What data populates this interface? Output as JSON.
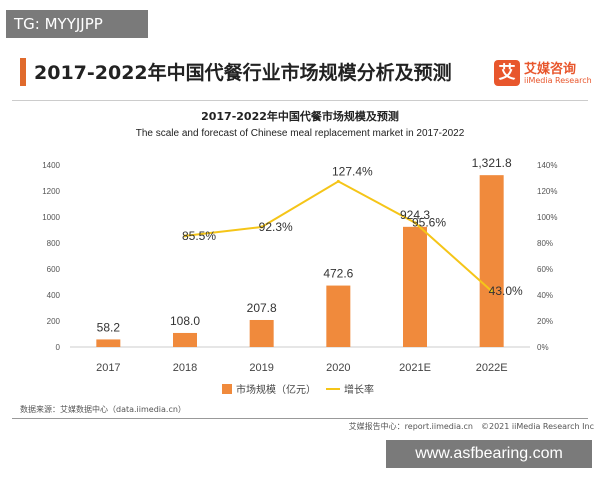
{
  "overlay_tag": "TG: MYYJJPP",
  "page_title": "2017-2022年中国代餐行业市场规模分析及预测",
  "logo": {
    "mark": "艾",
    "name_cn": "艾媒咨询",
    "name_en": "iiMedia Research"
  },
  "source_text": "数据来源：艾媒数据中心（data.iimedia.cn）",
  "footer_text": "艾媒报告中心：report.iimedia.cn　©2021 iiMedia Research Inc",
  "overlay_url": "www.asfbearing.com",
  "colors": {
    "bar": "#f08a3c",
    "line": "#f5c518",
    "accent": "#e06a2c"
  },
  "chart_data": {
    "type": "bar",
    "title": "2017-2022年中国代餐市场规模及预测",
    "subtitle": "The scale and forecast of Chinese meal replacement market in 2017-2022",
    "categories": [
      "2017",
      "2018",
      "2019",
      "2020",
      "2021E",
      "2022E"
    ],
    "series": [
      {
        "name": "市场规模（亿元）",
        "type": "bar",
        "axis": "left",
        "values": [
          58.2,
          108.0,
          207.8,
          472.6,
          924.3,
          1321.8
        ],
        "labels": [
          "58.2",
          "108.0",
          "207.8",
          "472.6",
          "924.3",
          "1,321.8"
        ]
      },
      {
        "name": "增长率",
        "type": "line",
        "axis": "right",
        "values": [
          null,
          85.5,
          92.3,
          127.4,
          95.6,
          43.0
        ],
        "labels": [
          "",
          "85.5%",
          "92.3%",
          "127.4%",
          "95.6%",
          "43.0%"
        ]
      }
    ],
    "left_axis": {
      "min": 0,
      "max": 1400,
      "ticks": [
        "0",
        "200",
        "400",
        "600",
        "800",
        "1000",
        "1200",
        "1400"
      ]
    },
    "right_axis": {
      "min": 0,
      "max": 140,
      "ticks": [
        "0%",
        "20%",
        "40%",
        "60%",
        "80%",
        "100%",
        "120%",
        "140%"
      ]
    },
    "grid": false,
    "legend": "bottom"
  }
}
